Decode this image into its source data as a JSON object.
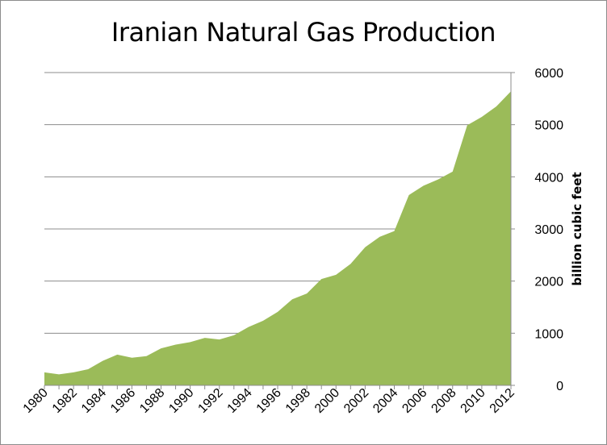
{
  "chart_data": {
    "type": "area",
    "title": "Iranian Natural Gas Production",
    "xlabel": "",
    "ylabel": "billion cubic feet",
    "ylim": [
      0,
      6000
    ],
    "y_ticks": [
      0,
      1000,
      2000,
      3000,
      4000,
      5000,
      6000
    ],
    "y_axis_side": "right",
    "grid": true,
    "x_tick_labels": [
      "1980",
      "1982",
      "1984",
      "1986",
      "1988",
      "1990",
      "1992",
      "1994",
      "1996",
      "1998",
      "2000",
      "2002",
      "2004",
      "2006",
      "2008",
      "2010",
      "2012"
    ],
    "x": [
      1980,
      1981,
      1982,
      1983,
      1984,
      1985,
      1986,
      1987,
      1988,
      1989,
      1990,
      1991,
      1992,
      1993,
      1994,
      1995,
      1996,
      1997,
      1998,
      1999,
      2000,
      2001,
      2002,
      2003,
      2004,
      2005,
      2006,
      2007,
      2008,
      2009,
      2010,
      2011,
      2012
    ],
    "series": [
      {
        "values": [
          250,
          210,
          250,
          310,
          470,
          590,
          530,
          560,
          710,
          780,
          830,
          910,
          880,
          960,
          1120,
          1240,
          1410,
          1650,
          1760,
          2040,
          2120,
          2330,
          2650,
          2850,
          2960,
          3650,
          3830,
          3950,
          4100,
          4990,
          5150,
          5350,
          5640
        ],
        "color": "#9bbb59"
      }
    ]
  }
}
